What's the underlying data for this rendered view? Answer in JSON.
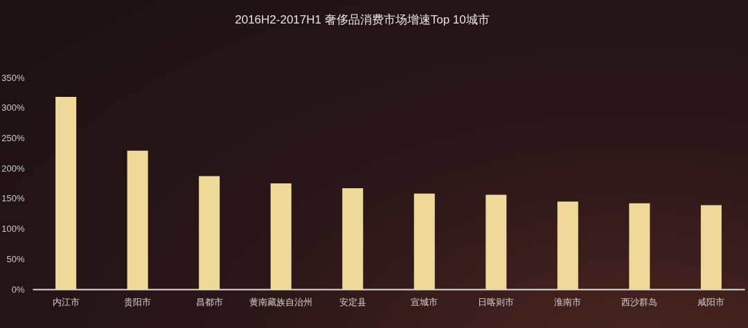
{
  "chart_data": {
    "type": "bar",
    "title": "2016H2-2017H1 奢侈品消费市场增速Top 10城市",
    "categories": [
      "内江市",
      "贵阳市",
      "昌都市",
      "黄南藏族自治州",
      "安定县",
      "宣城市",
      "日喀则市",
      "淮南市",
      "西沙群岛",
      "咸阳市"
    ],
    "values": [
      318,
      229,
      187,
      175,
      167,
      158,
      156,
      145,
      142,
      139
    ],
    "color": "#efd99a",
    "ylim": [
      0,
      350
    ],
    "yticks": [
      {
        "value": 0,
        "label": "0%"
      },
      {
        "value": 50,
        "label": "50%"
      },
      {
        "value": 100,
        "label": "100%"
      },
      {
        "value": 150,
        "label": "150%"
      },
      {
        "value": 200,
        "label": "200%"
      },
      {
        "value": 250,
        "label": "250%"
      },
      {
        "value": 300,
        "label": "300%"
      },
      {
        "value": 350,
        "label": "350%"
      }
    ]
  }
}
